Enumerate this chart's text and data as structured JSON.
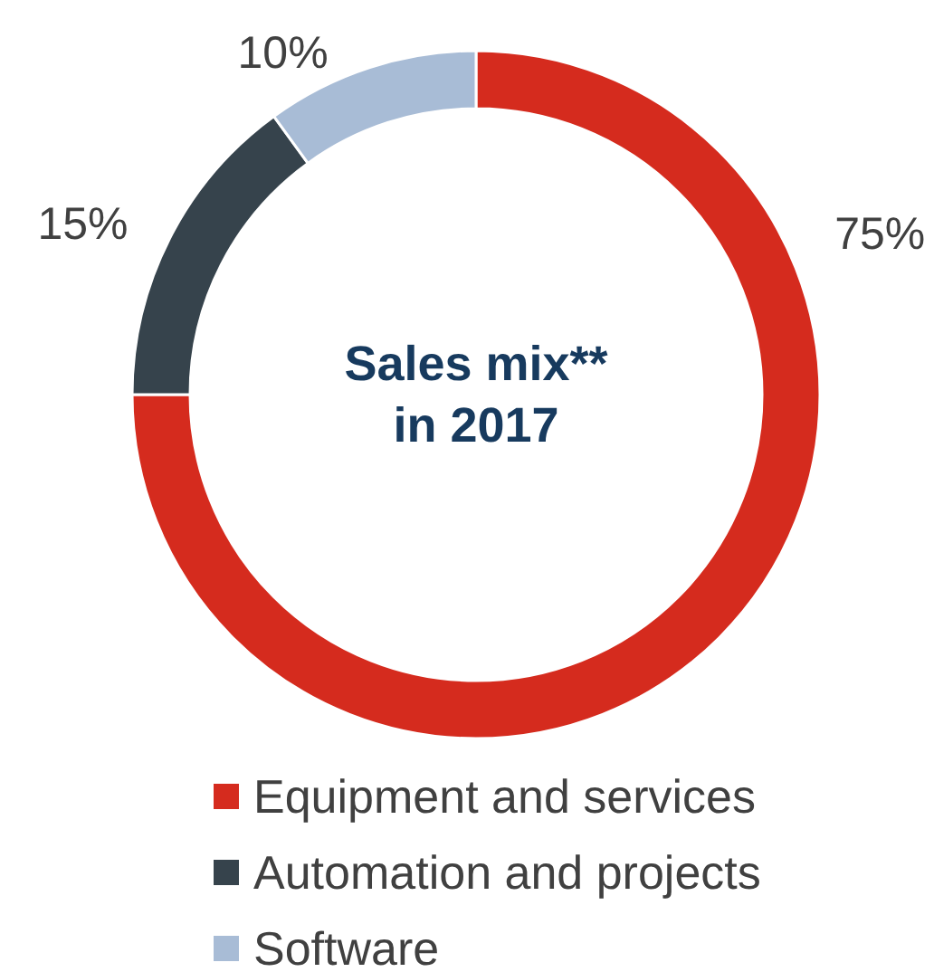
{
  "chart_data": {
    "type": "donut",
    "title": "Sales mix** in 2017",
    "categories": [
      "Equipment and services",
      "Automation and projects",
      "Software"
    ],
    "values": [
      75,
      15,
      10
    ],
    "colors": [
      "#d52b1e",
      "#36434c",
      "#a8bcd6"
    ],
    "value_labels": [
      "75%",
      "15%",
      "10%"
    ],
    "legend": "bottom"
  }
}
